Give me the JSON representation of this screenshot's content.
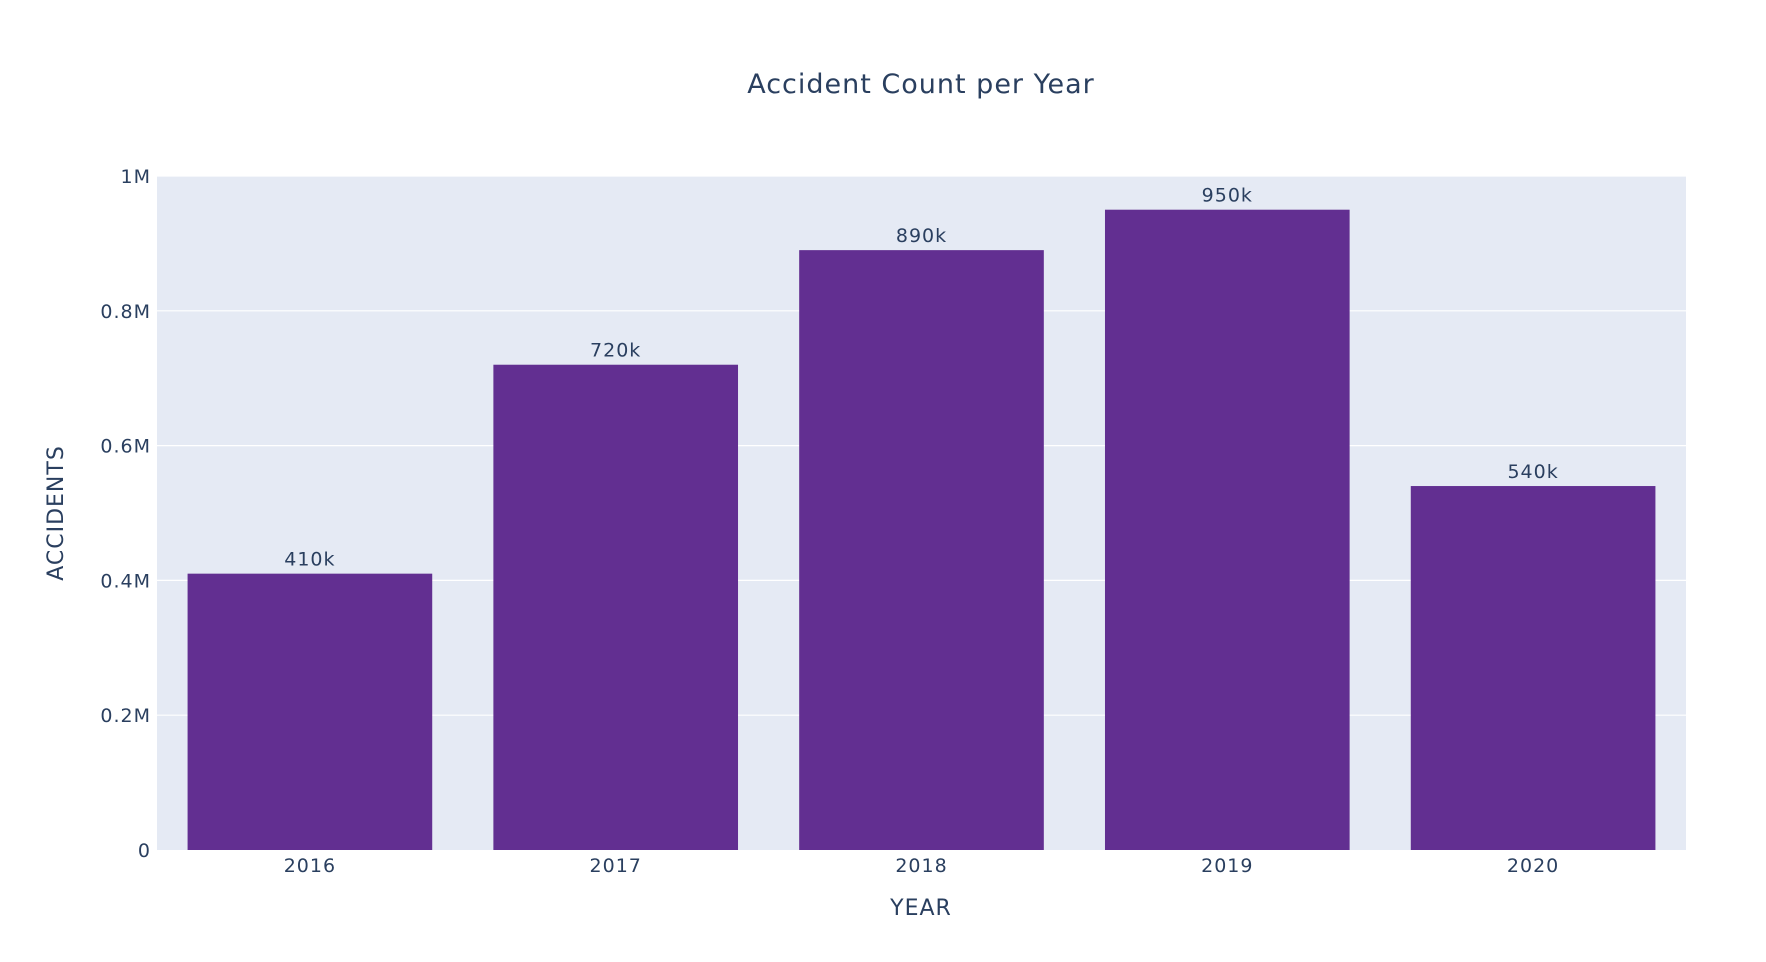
{
  "chart_data": {
    "type": "bar",
    "title": "Accident Count per Year",
    "xlabel": "YEAR",
    "ylabel": "ACCIDENTS",
    "categories": [
      "2016",
      "2017",
      "2018",
      "2019",
      "2020"
    ],
    "values": [
      410000,
      720000,
      890000,
      950000,
      540000
    ],
    "data_labels": [
      "410k",
      "720k",
      "890k",
      "950k",
      "540k"
    ],
    "ylim": [
      0,
      1000000
    ],
    "y_ticks": [
      0,
      200000,
      400000,
      600000,
      800000,
      1000000
    ],
    "y_tick_labels": [
      "0",
      "0.2M",
      "0.4M",
      "0.6M",
      "0.8M",
      "1M"
    ],
    "grid": true,
    "legend": "none",
    "colors": {
      "bar": "#622F91",
      "plot_background": "#E5EAF4",
      "gridline": "#ffffff",
      "text": "#2a3f5f"
    }
  }
}
